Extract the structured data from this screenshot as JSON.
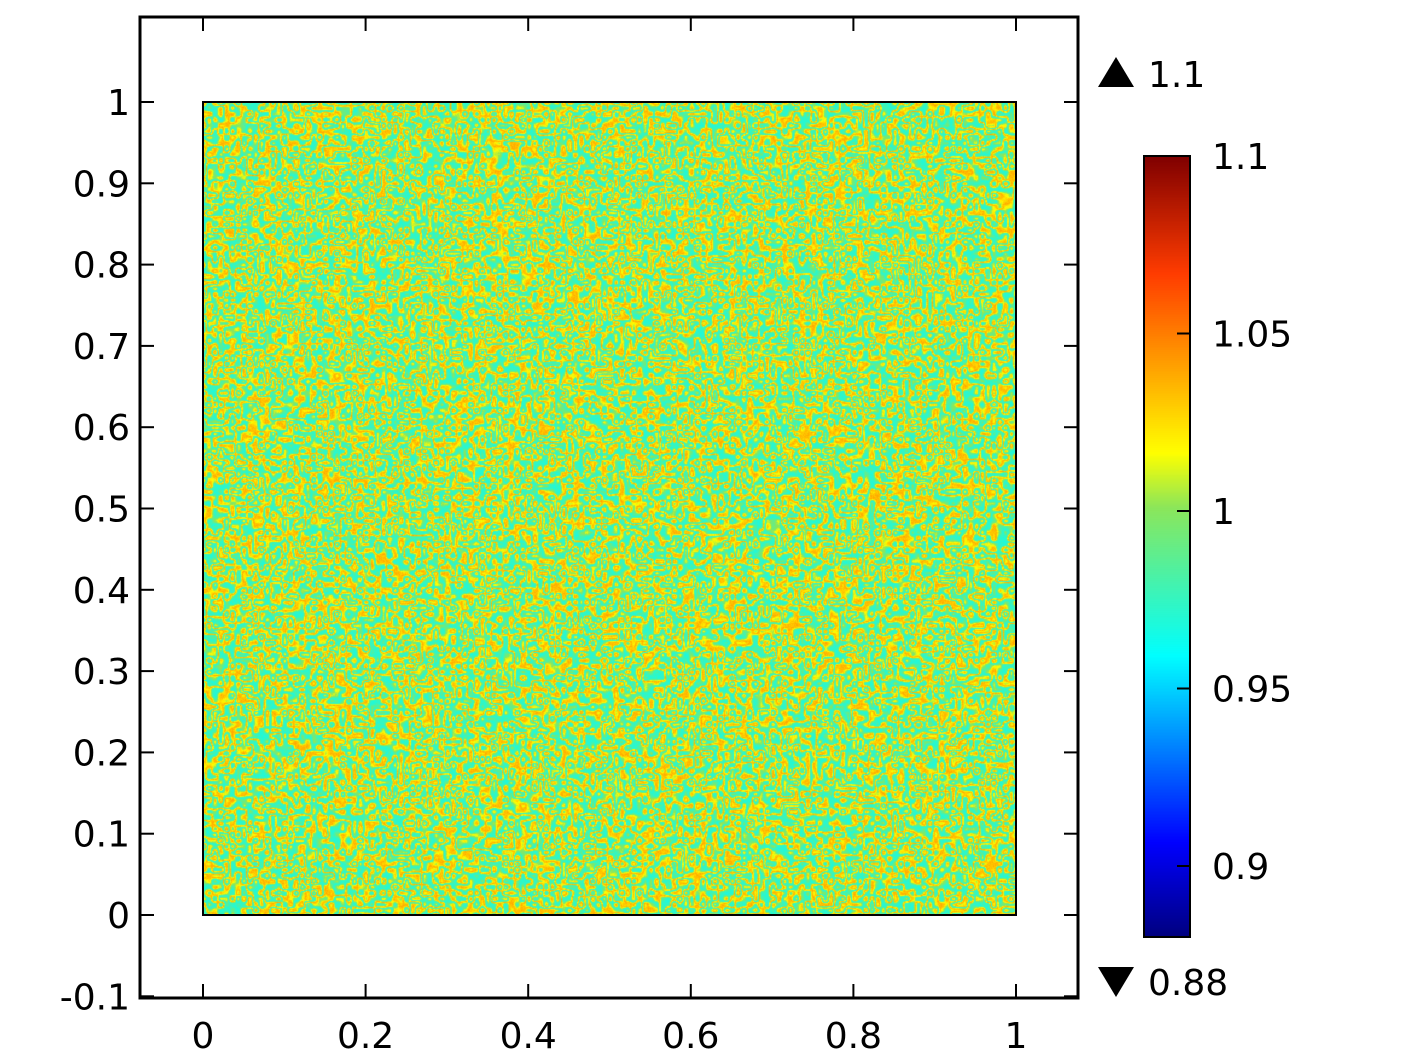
{
  "chart_data": {
    "type": "heatmap",
    "title": "",
    "xlabel": "",
    "ylabel": "",
    "xlim": [
      -0.08,
      1.08
    ],
    "ylim": [
      -0.1,
      1.1
    ],
    "x_ticks": [
      "0",
      "0.2",
      "0.4",
      "0.6",
      "0.8",
      "1"
    ],
    "x_tick_values": [
      0,
      0.2,
      0.4,
      0.6,
      0.8,
      1
    ],
    "y_ticks": [
      "-0.1",
      "0",
      "0.1",
      "0.2",
      "0.3",
      "0.4",
      "0.5",
      "0.6",
      "0.7",
      "0.8",
      "0.9",
      "1"
    ],
    "y_tick_values": [
      -0.1,
      0,
      0.1,
      0.2,
      0.3,
      0.4,
      0.5,
      0.6,
      0.7,
      0.8,
      0.9,
      1
    ],
    "domain": {
      "x": [
        0,
        1
      ],
      "y": [
        0,
        1
      ]
    },
    "field_description_values": {
      "min": 0.88,
      "max": 1.1,
      "typical": 1.0
    },
    "colorbar": {
      "colormap": "rainbow",
      "range": [
        0.88,
        1.1
      ],
      "ticks": [
        "1.1",
        "1.05",
        "1",
        "0.95",
        "0.9"
      ],
      "tick_values": [
        1.1,
        1.05,
        1.0,
        0.95,
        0.9
      ],
      "max_label": "1.1",
      "min_label": "0.88"
    },
    "grid": false,
    "legend": "colorbar-right"
  }
}
